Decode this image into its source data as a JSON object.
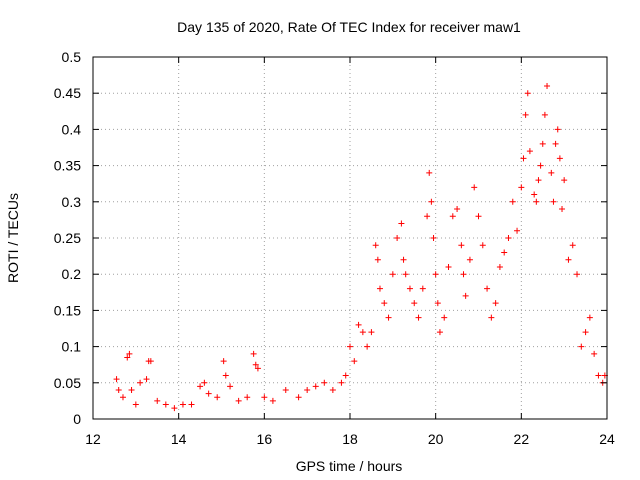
{
  "chart_data": {
    "type": "scatter",
    "title": "Day 135 of 2020, Rate Of TEC Index for receiver maw1",
    "xlabel": "GPS time / hours",
    "ylabel": "ROTI / TECUs",
    "xlim": [
      12,
      24
    ],
    "ylim": [
      0,
      0.5
    ],
    "x_ticks": [
      12,
      14,
      16,
      18,
      20,
      22,
      24
    ],
    "y_ticks": [
      0,
      0.05,
      0.1,
      0.15,
      0.2,
      0.25,
      0.3,
      0.35,
      0.4,
      0.45,
      0.5
    ],
    "x_tick_labels": [
      "12",
      "14",
      "16",
      "18",
      "20",
      "22",
      "24"
    ],
    "y_tick_labels": [
      "0",
      "0.05",
      "0.1",
      "0.15",
      "0.2",
      "0.25",
      "0.3",
      "0.35",
      "0.4",
      "0.45",
      "0.5"
    ],
    "grid": true,
    "marker": "+",
    "color": "#ff0000",
    "series": [
      {
        "name": "ROTI",
        "x": [
          12.55,
          12.6,
          12.7,
          12.8,
          12.85,
          12.9,
          13.0,
          13.1,
          13.25,
          13.3,
          13.35,
          13.5,
          13.7,
          13.9,
          14.1,
          14.3,
          14.5,
          14.6,
          14.7,
          14.9,
          15.05,
          15.1,
          15.2,
          15.4,
          15.6,
          15.75,
          15.8,
          15.85,
          16.0,
          16.2,
          16.5,
          16.8,
          17.0,
          17.2,
          17.4,
          17.6,
          17.8,
          17.9,
          18.0,
          18.1,
          18.2,
          18.3,
          18.4,
          18.5,
          18.6,
          18.65,
          18.7,
          18.8,
          18.9,
          19.0,
          19.1,
          19.2,
          19.25,
          19.3,
          19.4,
          19.5,
          19.6,
          19.7,
          19.8,
          19.85,
          19.9,
          19.95,
          20.0,
          20.05,
          20.1,
          20.2,
          20.3,
          20.4,
          20.5,
          20.6,
          20.65,
          20.7,
          20.8,
          20.9,
          21.0,
          21.1,
          21.2,
          21.3,
          21.4,
          21.5,
          21.6,
          21.7,
          21.8,
          21.9,
          22.0,
          22.05,
          22.1,
          22.15,
          22.2,
          22.3,
          22.35,
          22.4,
          22.45,
          22.5,
          22.55,
          22.6,
          22.7,
          22.75,
          22.8,
          22.85,
          22.9,
          22.95,
          23.0,
          23.1,
          23.2,
          23.3,
          23.4,
          23.5,
          23.6,
          23.7,
          23.8,
          23.9,
          23.95
        ],
        "y": [
          0.055,
          0.04,
          0.03,
          0.085,
          0.09,
          0.04,
          0.02,
          0.05,
          0.055,
          0.08,
          0.08,
          0.025,
          0.02,
          0.015,
          0.02,
          0.02,
          0.045,
          0.05,
          0.035,
          0.03,
          0.08,
          0.06,
          0.045,
          0.025,
          0.03,
          0.09,
          0.075,
          0.07,
          0.03,
          0.025,
          0.04,
          0.03,
          0.04,
          0.045,
          0.05,
          0.04,
          0.05,
          0.06,
          0.1,
          0.08,
          0.13,
          0.12,
          0.1,
          0.12,
          0.24,
          0.22,
          0.18,
          0.16,
          0.14,
          0.2,
          0.25,
          0.27,
          0.22,
          0.2,
          0.18,
          0.16,
          0.14,
          0.18,
          0.28,
          0.34,
          0.3,
          0.25,
          0.2,
          0.16,
          0.12,
          0.14,
          0.21,
          0.28,
          0.29,
          0.24,
          0.2,
          0.17,
          0.22,
          0.32,
          0.28,
          0.24,
          0.18,
          0.14,
          0.16,
          0.21,
          0.23,
          0.25,
          0.3,
          0.26,
          0.32,
          0.36,
          0.42,
          0.45,
          0.37,
          0.31,
          0.3,
          0.33,
          0.35,
          0.38,
          0.42,
          0.46,
          0.34,
          0.3,
          0.38,
          0.4,
          0.36,
          0.29,
          0.33,
          0.22,
          0.24,
          0.2,
          0.1,
          0.12,
          0.14,
          0.09,
          0.06,
          0.05,
          0.06
        ]
      }
    ]
  }
}
